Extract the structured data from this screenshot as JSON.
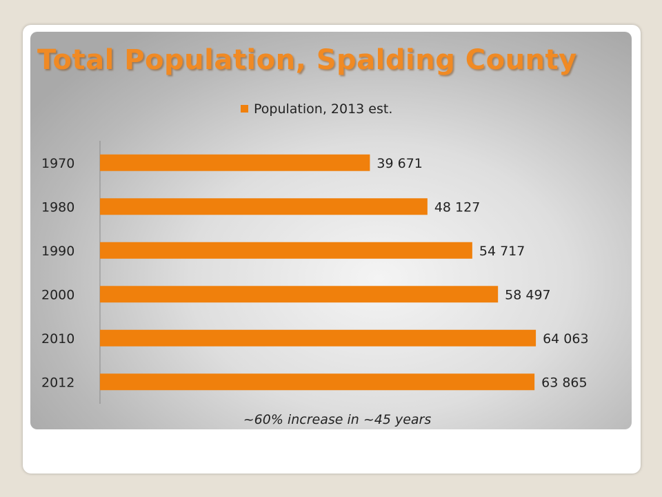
{
  "title": "Total Population, Spalding County",
  "note": "~60% increase in ~45 years",
  "colors": {
    "bar": "#f0800c",
    "title": "#f08a24"
  },
  "chart_data": {
    "type": "bar",
    "orientation": "horizontal",
    "categories": [
      "1970",
      "1980",
      "1990",
      "2000",
      "2010",
      "2012"
    ],
    "series": [
      {
        "name": "Population, 2013 est.",
        "values": [
          39671,
          48127,
          54717,
          58497,
          64063,
          63865
        ],
        "labels": [
          "39 671",
          "48 127",
          "54 717",
          "58 497",
          "64 063",
          "63 865"
        ]
      }
    ],
    "xlim": [
      0,
      75000
    ],
    "legend": "top-center",
    "grid": false
  }
}
